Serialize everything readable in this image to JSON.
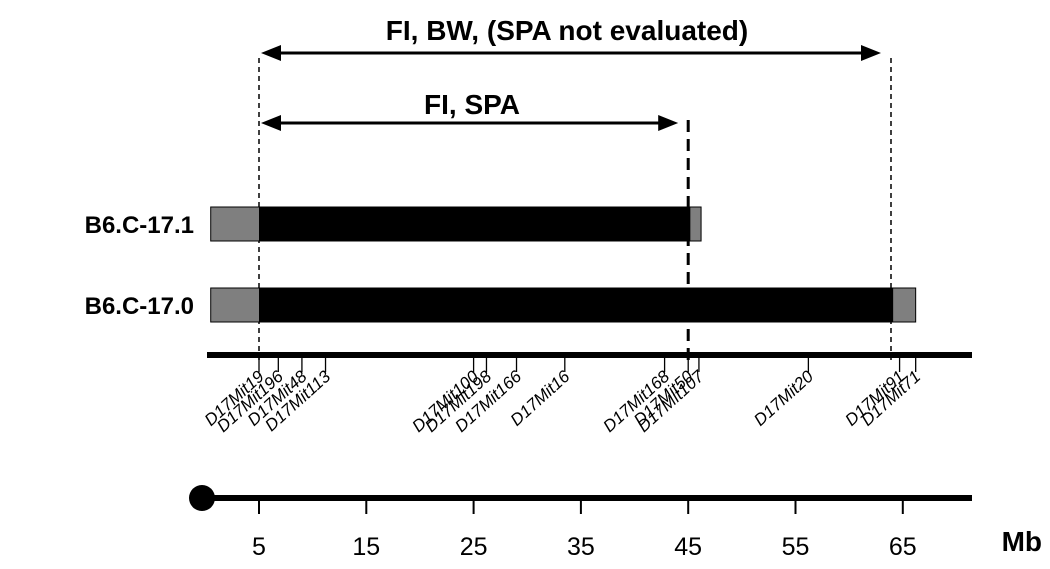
{
  "title_range_long": "FI, BW, (SPA not evaluated)",
  "title_range_short": "FI, SPA",
  "unit_label": "Mb",
  "axis_ticks": [
    "5",
    "15",
    "25",
    "35",
    "45",
    "55",
    "65"
  ],
  "strains": [
    {
      "label": "B6.C-17.1",
      "grey_start_mb": 0.5,
      "black_start_mb": 5,
      "black_end_mb": 45.2,
      "grey_end_mb": 46.2
    },
    {
      "label": "B6.C-17.0",
      "grey_start_mb": 0.5,
      "black_start_mb": 5,
      "black_end_mb": 64.1,
      "grey_end_mb": 66.2
    }
  ],
  "intervals": [
    {
      "label_ref": "title_range_long",
      "start_mb": 5,
      "end_mb": 63.9
    },
    {
      "label_ref": "title_range_short",
      "start_mb": 5,
      "end_mb": 45
    }
  ],
  "markers": [
    {
      "name": "D17Mit19",
      "mb": 5
    },
    {
      "name": "D17Mit196",
      "mb": 6.8
    },
    {
      "name": "D17Mit48",
      "mb": 9
    },
    {
      "name": "D17Mit113",
      "mb": 11.2
    },
    {
      "name": "D17Mit100",
      "mb": 25
    },
    {
      "name": "D17Mit198",
      "mb": 26.2
    },
    {
      "name": "D17Mit166",
      "mb": 29
    },
    {
      "name": "D17Mit16",
      "mb": 33.5
    },
    {
      "name": "D17Mit168",
      "mb": 42.8
    },
    {
      "name": "D17Mit50",
      "mb": 45
    },
    {
      "name": "D17Mit107",
      "mb": 46
    },
    {
      "name": "D17Mit20",
      "mb": 56.2
    },
    {
      "name": "D17Mit91",
      "mb": 64.7
    },
    {
      "name": "D17Mit71",
      "mb": 66.2
    }
  ],
  "colors": {
    "black_segment": "#000000",
    "grey_segment": "#7f7f7f",
    "line": "#000000"
  }
}
